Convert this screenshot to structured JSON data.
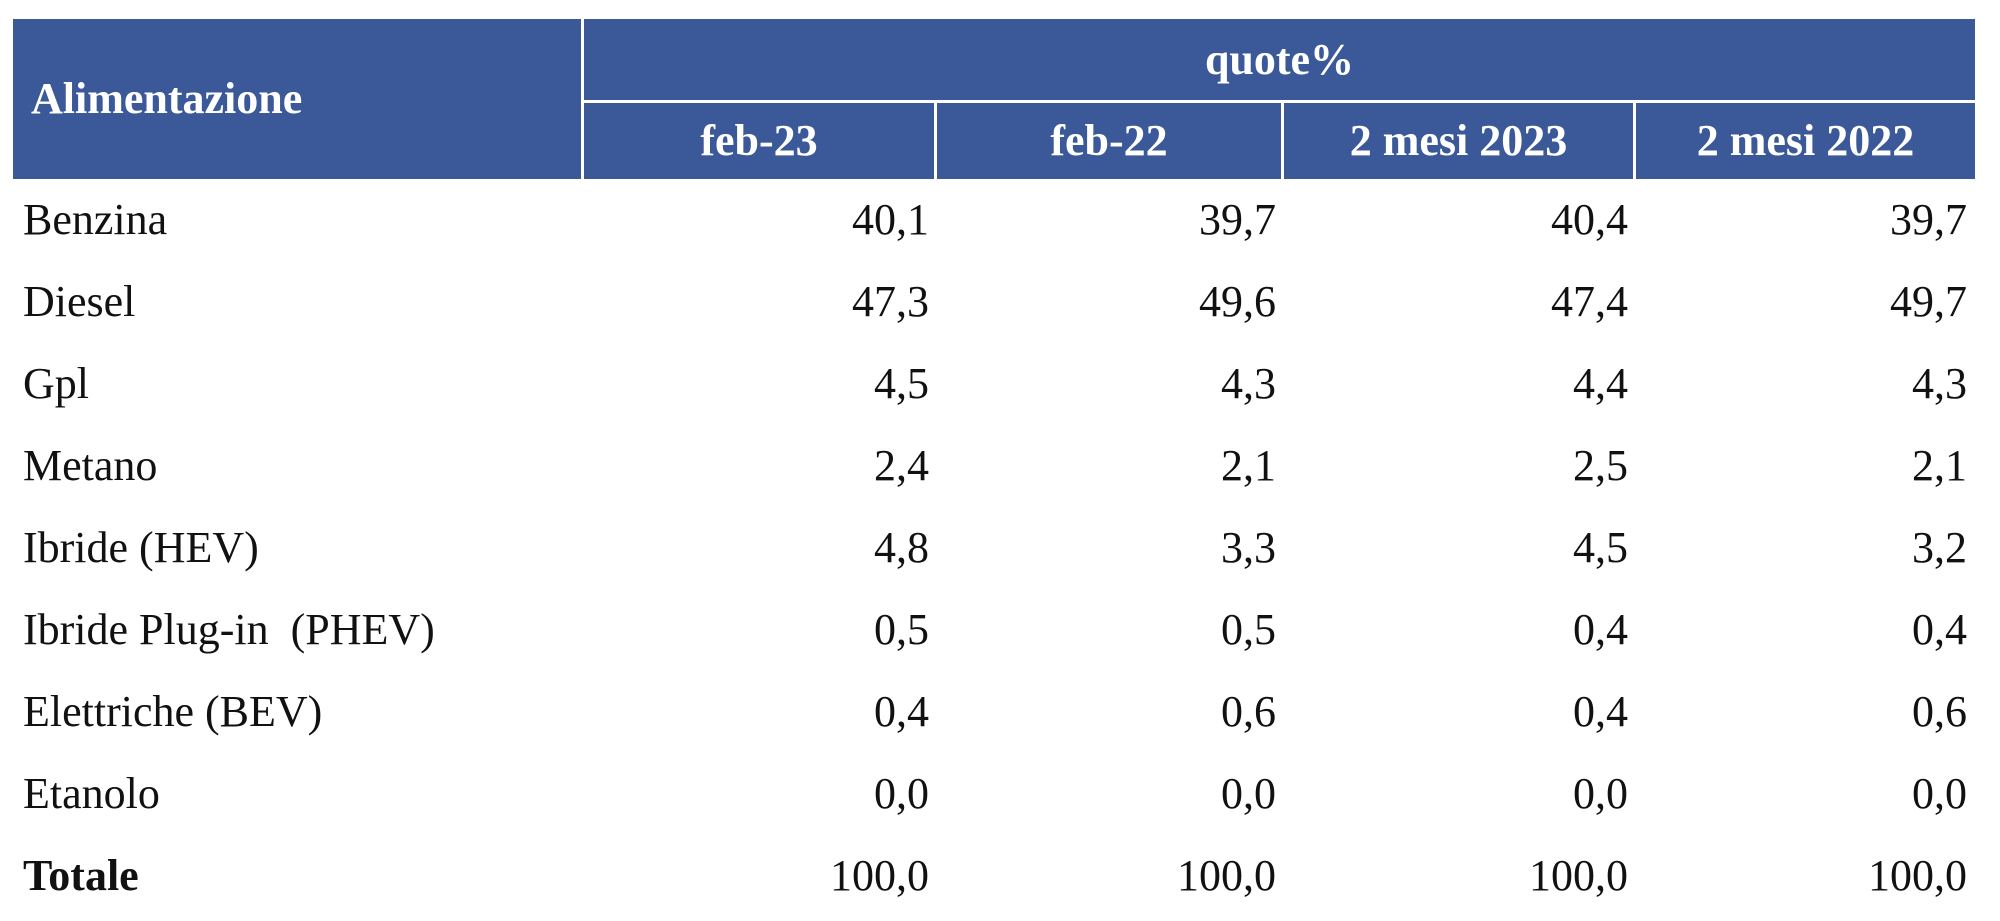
{
  "table": {
    "header": {
      "row_label": "Alimentazione",
      "group": "quote%",
      "columns": [
        "feb-23",
        "feb-22",
        "2 mesi 2023",
        "2 mesi 2022"
      ]
    },
    "rows": [
      {
        "label": "Benzina",
        "values": [
          "40,1",
          "39,7",
          "40,4",
          "39,7"
        ]
      },
      {
        "label": "Diesel",
        "values": [
          "47,3",
          "49,6",
          "47,4",
          "49,7"
        ]
      },
      {
        "label": "Gpl",
        "values": [
          "4,5",
          "4,3",
          "4,4",
          "4,3"
        ]
      },
      {
        "label": "Metano",
        "values": [
          "2,4",
          "2,1",
          "2,5",
          "2,1"
        ]
      },
      {
        "label": "Ibride (HEV)",
        "values": [
          "4,8",
          "3,3",
          "4,5",
          "3,2"
        ]
      },
      {
        "label": "Ibride Plug-in  (PHEV)",
        "values": [
          "0,5",
          "0,5",
          "0,4",
          "0,4"
        ]
      },
      {
        "label": "Elettriche (BEV)",
        "values": [
          "0,4",
          "0,6",
          "0,4",
          "0,6"
        ]
      },
      {
        "label": "Etanolo",
        "values": [
          "0,0",
          "0,0",
          "0,0",
          "0,0"
        ]
      },
      {
        "label": "Totale",
        "values": [
          "100,0",
          "100,0",
          "100,0",
          "100,0"
        ],
        "bold": true
      }
    ]
  }
}
